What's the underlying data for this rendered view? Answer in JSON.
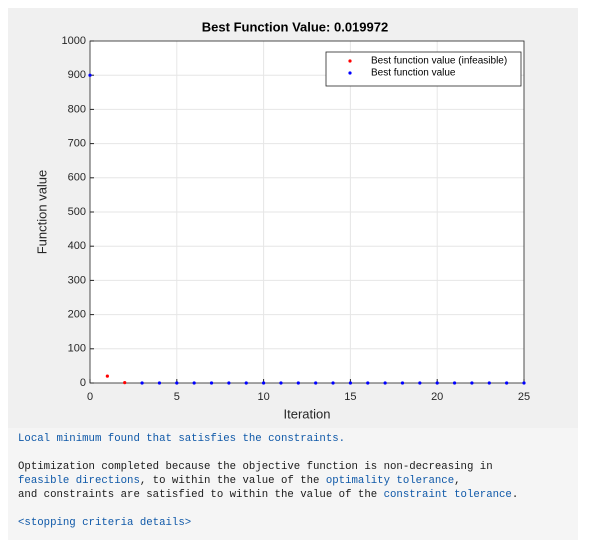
{
  "chart_data": {
    "type": "scatter",
    "title": "Best Function Value: 0.019972",
    "xlabel": "Iteration",
    "ylabel": "Function value",
    "xlim": [
      0,
      25
    ],
    "ylim": [
      0,
      1000
    ],
    "xticks": [
      0,
      5,
      10,
      15,
      20,
      25
    ],
    "yticks": [
      0,
      100,
      200,
      300,
      400,
      500,
      600,
      700,
      800,
      900,
      1000
    ],
    "grid": true,
    "legend": "northeast",
    "series": [
      {
        "name": "Best function value (infeasible)",
        "color": "#ff0000",
        "x": [
          1,
          2
        ],
        "values": [
          20,
          1
        ]
      },
      {
        "name": "Best function value",
        "color": "#0000ff",
        "x": [
          0,
          3,
          4,
          5,
          6,
          7,
          8,
          9,
          10,
          11,
          12,
          13,
          14,
          15,
          16,
          17,
          18,
          19,
          20,
          21,
          22,
          23,
          24,
          25
        ],
        "values": [
          900,
          0.02,
          0.02,
          0.02,
          0.02,
          0.02,
          0.02,
          0.02,
          0.02,
          0.02,
          0.02,
          0.02,
          0.02,
          0.02,
          0.02,
          0.02,
          0.02,
          0.02,
          0.02,
          0.02,
          0.02,
          0.02,
          0.02,
          0.019972
        ]
      }
    ]
  },
  "message": {
    "headline": "Local minimum found that satisfies the constraints.",
    "body": [
      [
        {
          "text": "Optimization completed because the objective function is non-decreasing in",
          "link": false
        }
      ],
      [
        {
          "text": "feasible directions",
          "link": true
        },
        {
          "text": ", to within the value of the ",
          "link": false
        },
        {
          "text": "optimality tolerance",
          "link": true
        },
        {
          "text": ",",
          "link": false
        }
      ],
      [
        {
          "text": "and constraints are satisfied to within the value of the ",
          "link": false
        },
        {
          "text": "constraint tolerance",
          "link": true
        },
        {
          "text": ".",
          "link": false
        }
      ]
    ],
    "details": "<stopping criteria details>"
  }
}
